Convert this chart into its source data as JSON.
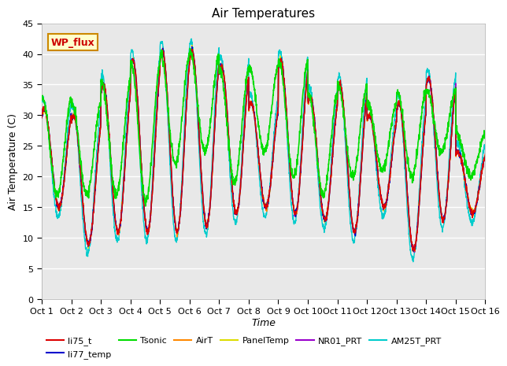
{
  "title": "Air Temperatures",
  "xlabel": "Time",
  "ylabel": "Air Temperature (C)",
  "ylim": [
    0,
    45
  ],
  "yticks": [
    0,
    5,
    10,
    15,
    20,
    25,
    30,
    35,
    40,
    45
  ],
  "x_tick_labels": [
    "Oct 1",
    "Oct 2",
    "Oct 3",
    "Oct 4",
    "Oct 5",
    "Oct 6",
    "Oct 7",
    "Oct 8",
    "Oct 9",
    "Oct 10",
    "Oct 11",
    "Oct 12",
    "Oct 13",
    "Oct 14",
    "Oct 15",
    "Oct 16"
  ],
  "series_colors": {
    "li75_t": "#dd0000",
    "li77_temp": "#0000cc",
    "Tsonic": "#00dd00",
    "AirT": "#ff8800",
    "PanelTemp": "#dddd00",
    "NR01_PRT": "#9900cc",
    "AM25T_PRT": "#00cccc"
  },
  "annotation_text": "WP_flux",
  "annotation_color": "#cc0000",
  "annotation_bg": "#ffffcc",
  "annotation_border": "#cc8800",
  "plot_bg": "#e8e8e8",
  "title_fontsize": 11,
  "label_fontsize": 9,
  "tick_fontsize": 8,
  "legend_fontsize": 8
}
